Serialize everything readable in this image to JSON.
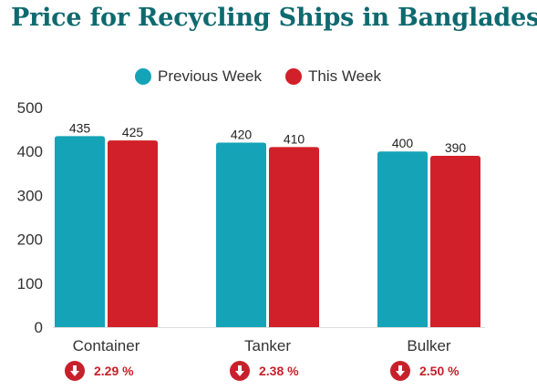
{
  "title": "Price for Recycling Ships in Bangladesh",
  "legend": [
    {
      "label": "Previous Week",
      "color": "#15a3b8"
    },
    {
      "label": "This Week",
      "color": "#d12029"
    }
  ],
  "changes": [
    {
      "category": "Container",
      "value": "2.29 %",
      "icon": "arrow-down-icon"
    },
    {
      "category": "Tanker",
      "value": "2.38 %",
      "icon": "arrow-down-icon"
    },
    {
      "category": "Bulker",
      "value": "2.50 %",
      "icon": "arrow-down-icon"
    }
  ],
  "chart_data": {
    "type": "bar",
    "title": "Price for Recycling Ships in Bangladesh",
    "categories": [
      "Container",
      "Tanker",
      "Bulker"
    ],
    "series": [
      {
        "name": "Previous Week",
        "values": [
          435,
          420,
          400
        ],
        "color": "#15a3b8"
      },
      {
        "name": "This Week",
        "values": [
          425,
          410,
          390
        ],
        "color": "#d12029"
      }
    ],
    "yticks": [
      "500",
      "400",
      "300",
      "200",
      "100",
      "0"
    ],
    "ylim": [
      0,
      500
    ],
    "xlabel": "",
    "ylabel": "",
    "grid": false,
    "legend_position": "top-center"
  }
}
